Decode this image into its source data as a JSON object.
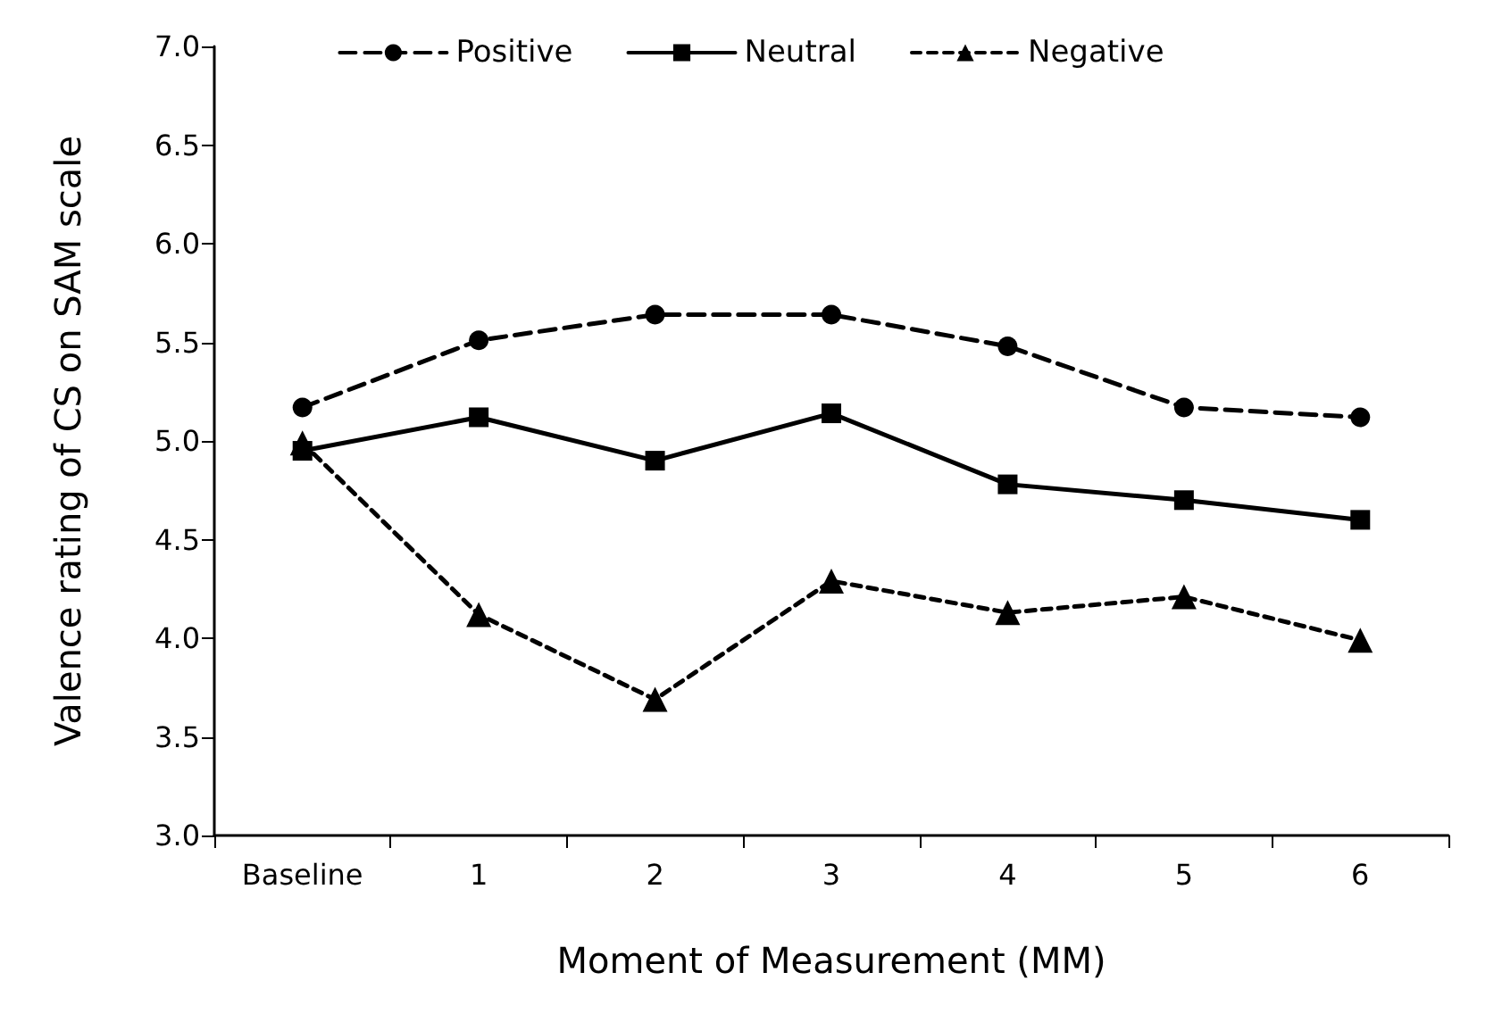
{
  "chart_data": {
    "type": "line",
    "xlabel": "Moment of Measurement (MM)",
    "ylabel": "Valence rating of CS on SAM scale",
    "categories": [
      "Baseline",
      "1",
      "2",
      "3",
      "4",
      "5",
      "6"
    ],
    "ylim": [
      3,
      7
    ],
    "yticks": [
      {
        "value": 3,
        "label": "3.0"
      },
      3.5,
      {
        "value": 4,
        "label": "4.0"
      },
      4.5,
      {
        "value": 5,
        "label": "5.0"
      },
      5.5,
      {
        "value": 6,
        "label": "6.0"
      },
      6.5,
      {
        "value": 7,
        "label": "7.0"
      }
    ],
    "grid": false,
    "legend": "top",
    "series": [
      {
        "name": "Positive",
        "color": "#000000",
        "marker": "circle",
        "line_style": "dashed",
        "values": [
          5.17,
          5.51,
          5.64,
          5.64,
          5.48,
          5.17,
          5.12
        ]
      },
      {
        "name": "Neutral",
        "color": "#000000",
        "marker": "square",
        "line_style": "solid",
        "values": [
          4.95,
          5.12,
          4.9,
          5.14,
          4.78,
          4.7,
          4.6
        ]
      },
      {
        "name": "Negative",
        "color": "#000000",
        "marker": "triangle",
        "line_style": "dotted",
        "values": [
          4.99,
          4.12,
          3.69,
          4.29,
          4.13,
          4.21,
          3.99
        ]
      }
    ]
  }
}
